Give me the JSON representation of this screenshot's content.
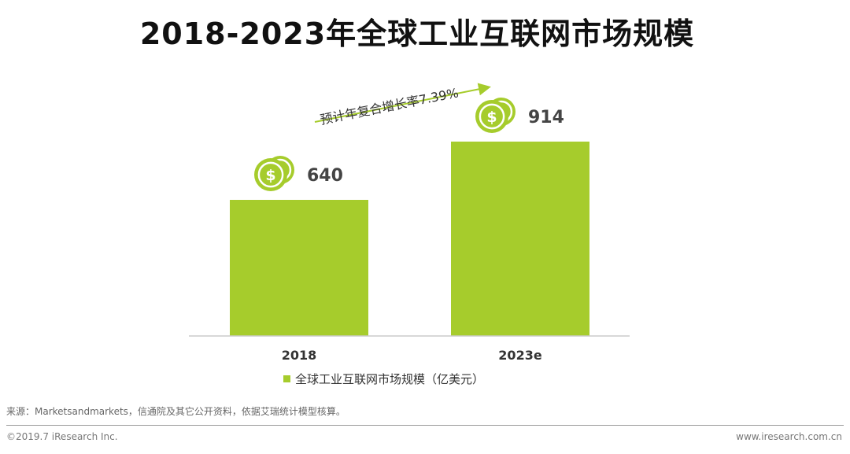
{
  "chart_data": {
    "type": "bar",
    "title": "2018-2023年全球工业互联网市场规模",
    "categories": [
      "2018",
      "2023e"
    ],
    "values": [
      640,
      914
    ],
    "series": [
      {
        "name": "全球工业互联网市场规模（亿美元）",
        "values": [
          640,
          914
        ]
      }
    ],
    "ylim": [
      0,
      1000
    ],
    "annotation": "预计年复合增长率7.39%",
    "legend_position": "bottom",
    "xlabel": "",
    "ylabel": ""
  },
  "colors": {
    "bar": "#a6cc2c",
    "coin_outer": "#a6cc2c",
    "coin_inner": "#ffffff",
    "arrow": "#a6cc2c"
  },
  "source_text": "来源：Marketsandmarkets，信通院及其它公开资料，依据艾瑞统计模型核算。",
  "footer": {
    "copyright": "©2019.7 iResearch Inc.",
    "website": "www.iresearch.com.cn"
  }
}
